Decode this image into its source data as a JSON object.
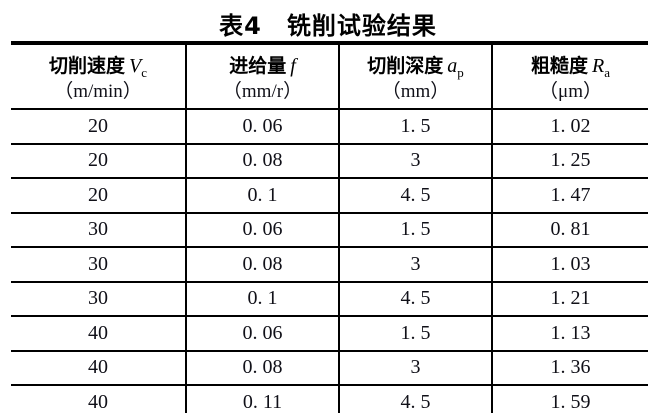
{
  "title": "表4　铣削试验结果",
  "colors": {
    "text": "#0d0d0d",
    "border": "#000000",
    "background": "#ffffff"
  },
  "table": {
    "columns": [
      {
        "name_cn": "切削速度",
        "var": "V",
        "var_sub": "c",
        "unit": "（m/min）"
      },
      {
        "name_cn": "进给量",
        "var": "f",
        "var_sub": "",
        "unit": "（mm/r）"
      },
      {
        "name_cn": "切削深度",
        "var": "a",
        "var_sub": "p",
        "unit": "（mm）"
      },
      {
        "name_cn": "粗糙度",
        "var": "R",
        "var_sub": "a",
        "unit": "（μm）"
      }
    ],
    "rows": [
      [
        "20",
        "0. 06",
        "1. 5",
        "1. 02"
      ],
      [
        "20",
        "0. 08",
        "3",
        "1. 25"
      ],
      [
        "20",
        "0. 1",
        "4. 5",
        "1. 47"
      ],
      [
        "30",
        "0. 06",
        "1. 5",
        "0. 81"
      ],
      [
        "30",
        "0. 08",
        "3",
        "1. 03"
      ],
      [
        "30",
        "0. 1",
        "4. 5",
        "1. 21"
      ],
      [
        "40",
        "0. 06",
        "1. 5",
        "1. 13"
      ],
      [
        "40",
        "0. 08",
        "3",
        "1. 36"
      ],
      [
        "40",
        "0. 11",
        "4. 5",
        "1. 59"
      ]
    ]
  }
}
